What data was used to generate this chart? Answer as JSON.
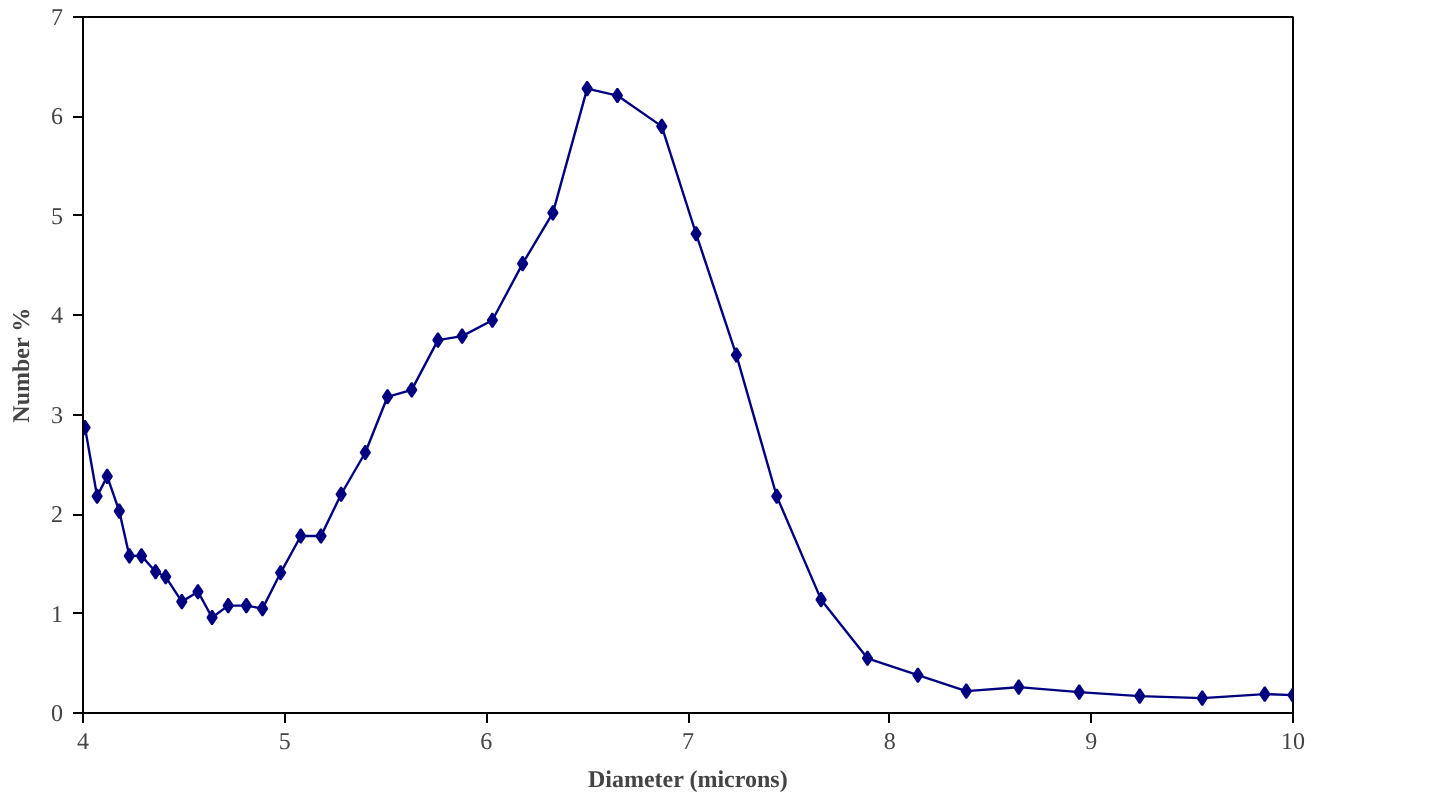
{
  "chart_data": {
    "type": "line",
    "xlabel": "Diameter (microns)",
    "ylabel": "Number %",
    "xlim": [
      4,
      10
    ],
    "ylim": [
      0,
      7
    ],
    "xticks": [
      4,
      5,
      6,
      7,
      8,
      9,
      10
    ],
    "yticks": [
      0,
      1,
      2,
      3,
      4,
      5,
      6,
      7
    ],
    "grid": false,
    "marker": "diamond",
    "line_style": "solid",
    "series": [
      {
        "color": "#000080",
        "x": [
          4.01,
          4.07,
          4.12,
          4.18,
          4.23,
          4.29,
          4.36,
          4.41,
          4.49,
          4.57,
          4.64,
          4.72,
          4.81,
          4.89,
          4.98,
          5.08,
          5.18,
          5.28,
          5.4,
          5.51,
          5.63,
          5.76,
          5.88,
          6.03,
          6.18,
          6.33,
          6.5,
          6.65,
          6.87,
          7.04,
          7.24,
          7.44,
          7.66,
          7.89,
          8.14,
          8.38,
          8.64,
          8.94,
          9.24,
          9.55,
          9.86,
          10.0
        ],
        "values": [
          2.87,
          2.18,
          2.38,
          2.03,
          1.58,
          1.58,
          1.42,
          1.37,
          1.12,
          1.22,
          0.96,
          1.08,
          1.08,
          1.05,
          1.41,
          1.78,
          1.78,
          2.2,
          2.62,
          3.18,
          3.25,
          3.75,
          3.79,
          3.95,
          4.52,
          5.03,
          6.28,
          6.21,
          5.9,
          4.82,
          3.6,
          2.18,
          1.14,
          0.55,
          0.38,
          0.22,
          0.26,
          0.21,
          0.17,
          0.15,
          0.19,
          0.18
        ]
      }
    ]
  }
}
